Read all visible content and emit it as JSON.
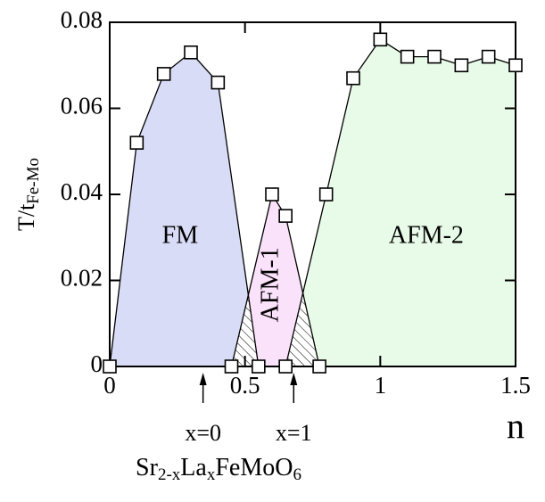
{
  "chart_data": {
    "type": "phase-diagram",
    "xlabel": "n",
    "ylabel": [
      "T/t",
      "Fe-Mo"
    ],
    "xlim": [
      0,
      1.5
    ],
    "ylim": [
      0,
      0.08
    ],
    "xticks": [
      0,
      0.5,
      1,
      1.5
    ],
    "yticks": [
      0,
      0.02,
      0.04,
      0.06,
      0.08
    ],
    "series": [
      {
        "name": "FM",
        "color": "#d9dcf6",
        "x": [
          0,
          0.1,
          0.2,
          0.3,
          0.4,
          0.55
        ],
        "values": [
          0,
          0.052,
          0.068,
          0.073,
          0.066,
          0
        ]
      },
      {
        "name": "AFM-1",
        "color": "#fbe2fb",
        "x": [
          0.45,
          0.6,
          0.65,
          0.775
        ],
        "values": [
          0,
          0.04,
          0.035,
          0
        ]
      },
      {
        "name": "AFM-2",
        "color": "#e8fbe8",
        "x": [
          0.65,
          0.8,
          0.9,
          1,
          1.1,
          1.2,
          1.3,
          1.4,
          1.5
        ],
        "values": [
          0,
          0.04,
          0.067,
          0.076,
          0.072,
          0.072,
          0.07,
          0.072,
          0.07
        ]
      }
    ],
    "annotations": [
      {
        "text": "x=0",
        "x": 0.345
      },
      {
        "text": "x=1",
        "x": 0.68
      }
    ],
    "compound": [
      "Sr",
      "2-x",
      "La",
      "x",
      "FeMoO",
      "6"
    ]
  }
}
